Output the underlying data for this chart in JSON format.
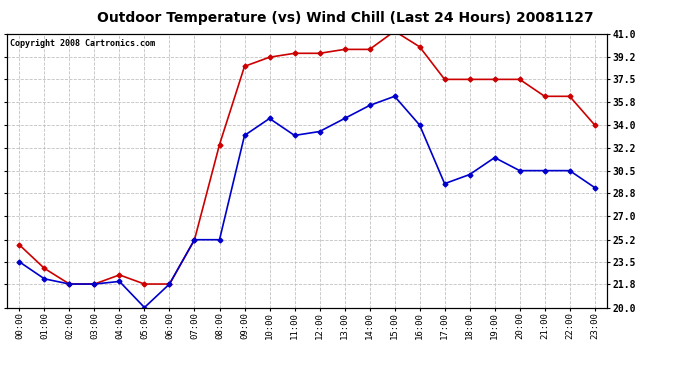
{
  "title": "Outdoor Temperature (vs) Wind Chill (Last 24 Hours) 20081127",
  "copyright": "Copyright 2008 Cartronics.com",
  "x_labels": [
    "00:00",
    "01:00",
    "02:00",
    "03:00",
    "04:00",
    "05:00",
    "06:00",
    "07:00",
    "08:00",
    "09:00",
    "10:00",
    "11:00",
    "12:00",
    "13:00",
    "14:00",
    "15:00",
    "16:00",
    "17:00",
    "18:00",
    "19:00",
    "20:00",
    "21:00",
    "22:00",
    "23:00"
  ],
  "temp_red": [
    24.8,
    23.0,
    21.8,
    21.8,
    22.5,
    21.8,
    21.8,
    25.2,
    32.5,
    38.5,
    39.2,
    39.5,
    39.5,
    39.8,
    39.8,
    41.2,
    40.0,
    37.5,
    37.5,
    37.5,
    37.5,
    36.2,
    36.2,
    34.0
  ],
  "temp_blue": [
    23.5,
    22.2,
    21.8,
    21.8,
    22.0,
    20.0,
    21.8,
    25.2,
    25.2,
    33.2,
    34.5,
    33.2,
    33.5,
    34.5,
    35.5,
    36.2,
    34.0,
    29.5,
    30.2,
    31.5,
    30.5,
    30.5,
    30.5,
    29.2
  ],
  "ylim_min": 20.0,
  "ylim_max": 41.0,
  "yticks": [
    20.0,
    21.8,
    23.5,
    25.2,
    27.0,
    28.8,
    30.5,
    32.2,
    34.0,
    35.8,
    37.5,
    39.2,
    41.0
  ],
  "red_color": "#cc0000",
  "blue_color": "#0000cc",
  "grid_color": "#bbbbbb",
  "bg_color": "#ffffff",
  "title_fontsize": 10,
  "copyright_fontsize": 6
}
